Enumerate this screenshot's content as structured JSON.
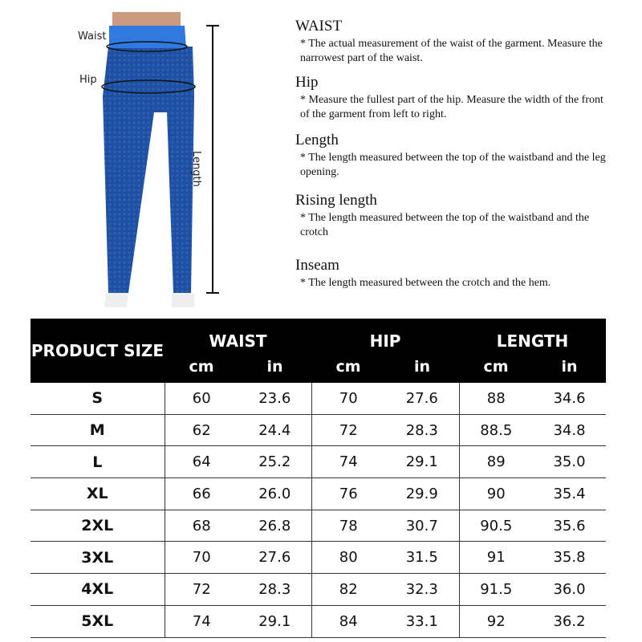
{
  "figure": {
    "waist_label": "Waist",
    "hip_label": "Hip",
    "length_label": "Length",
    "garment_color": "#1f4fa0",
    "waistband_color": "#2f7ae0"
  },
  "descriptions": [
    {
      "title": "WAIST",
      "text": "*  The actual measurement of the waist of the garment. Measure the narrowest part of the waist."
    },
    {
      "title": "Hip",
      "text": "* Measure the fullest part of the  hip. Measure the width of the front of the garment from left to right."
    },
    {
      "title": "Length",
      "text": "* The length measured between the top of the waistband and the leg opening."
    },
    {
      "title": "Rising length",
      "text": "* The length measured between the top of the waistband and the crotch"
    },
    {
      "title": "Inseam",
      "text": "* The length measured between the crotch and the hem."
    }
  ],
  "table": {
    "size_header": "PRODUCT SIZE",
    "groups": [
      "WAIST",
      "HIP",
      "LENGTH"
    ],
    "units": [
      "cm",
      "in",
      "cm",
      "in",
      "cm",
      "in"
    ],
    "rows": [
      [
        "S",
        "60",
        "23.6",
        "70",
        "27.6",
        "88",
        "34.6"
      ],
      [
        "M",
        "62",
        "24.4",
        "72",
        "28.3",
        "88.5",
        "34.8"
      ],
      [
        "L",
        "64",
        "25.2",
        "74",
        "29.1",
        "89",
        "35.0"
      ],
      [
        "XL",
        "66",
        "26.0",
        "76",
        "29.9",
        "90",
        "35.4"
      ],
      [
        "2XL",
        "68",
        "26.8",
        "78",
        "30.7",
        "90.5",
        "35.6"
      ],
      [
        "3XL",
        "70",
        "27.6",
        "80",
        "31.5",
        "91",
        "35.8"
      ],
      [
        "4XL",
        "72",
        "28.3",
        "82",
        "32.3",
        "91.5",
        "36.0"
      ],
      [
        "5XL",
        "74",
        "29.1",
        "84",
        "33.1",
        "92",
        "36.2"
      ]
    ]
  }
}
